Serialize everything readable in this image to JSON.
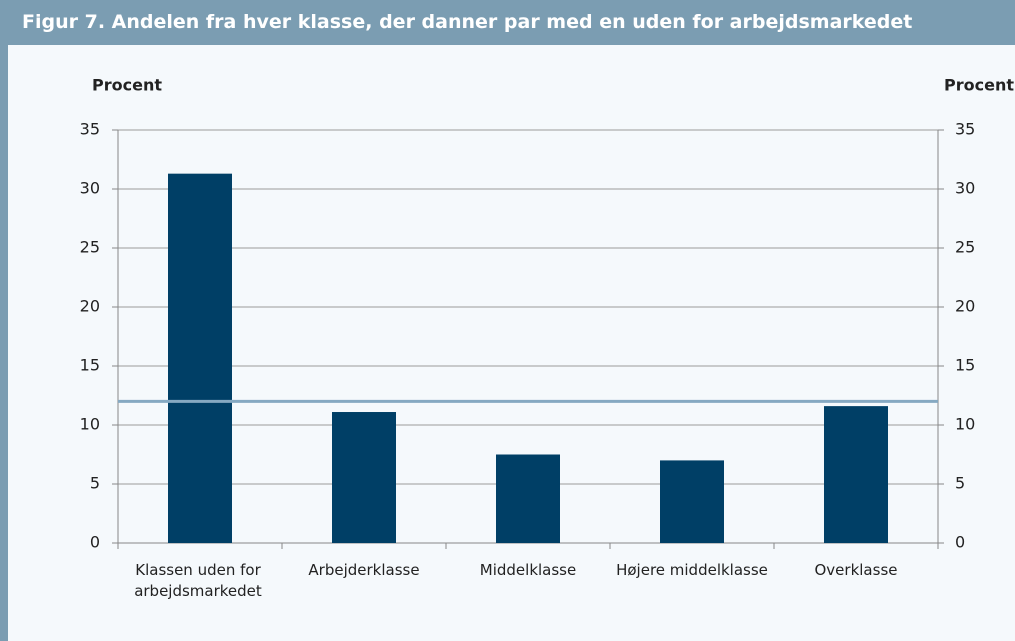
{
  "chart_data": {
    "type": "bar",
    "title": "Figur 7. Andelen fra hver klasse, der danner par med en uden for arbejdsmarkedet",
    "y_label": "Procent",
    "y2_label": "Procent",
    "categories": [
      "Klassen uden for arbejdsmarkedet",
      "Arbejderklasse",
      "Middelklasse",
      "Højere middelklasse",
      "Overklasse"
    ],
    "values": [
      31.3,
      11.1,
      7.5,
      7.0,
      11.6
    ],
    "color": "#003f66",
    "reference_line": 12,
    "reference_color": "#86a9c2",
    "ylim": [
      0,
      35
    ],
    "yticks": [
      0,
      5,
      10,
      15,
      20,
      25,
      30,
      35
    ],
    "y2lim": [
      0,
      35
    ],
    "y2ticks": [
      0,
      5,
      10,
      15,
      20,
      25,
      30,
      35
    ],
    "grid": true
  }
}
